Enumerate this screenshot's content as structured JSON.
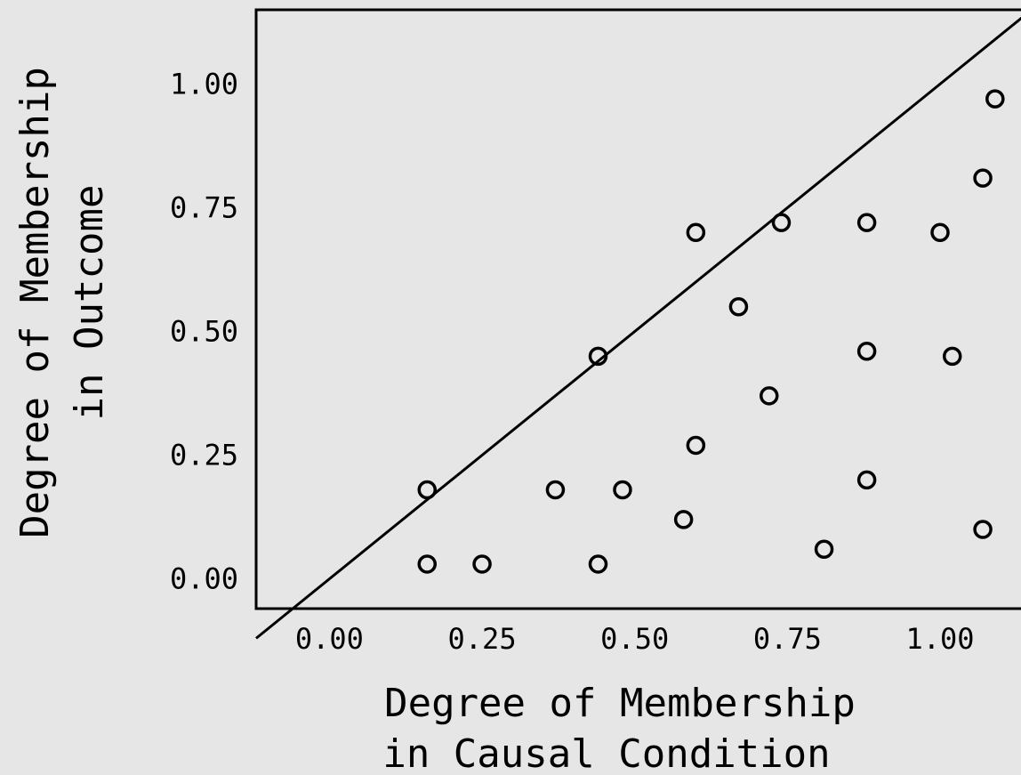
{
  "chart_data": {
    "type": "scatter",
    "title": "",
    "xlabel_lines": [
      "Degree of Membership",
      "in Causal Condition"
    ],
    "ylabel_lines": [
      "Degree of Membership",
      "in Outcome"
    ],
    "xlim": [
      -0.12,
      1.15
    ],
    "ylim": [
      -0.06,
      1.15
    ],
    "x_ticks": [
      0.0,
      0.25,
      0.5,
      0.75,
      1.0
    ],
    "x_tick_labels": [
      "0.00",
      "0.25",
      "0.50",
      "0.75",
      "1.00"
    ],
    "y_ticks": [
      0.0,
      0.25,
      0.5,
      0.75,
      1.0
    ],
    "y_tick_labels": [
      "0.00",
      "0.25",
      "0.50",
      "0.75",
      "1.00"
    ],
    "grid": false,
    "marker": "open-circle",
    "reference_line": "y = x",
    "points": [
      {
        "x": 0.16,
        "y": 0.18
      },
      {
        "x": 0.16,
        "y": 0.03
      },
      {
        "x": 0.25,
        "y": 0.03
      },
      {
        "x": 0.37,
        "y": 0.18
      },
      {
        "x": 0.44,
        "y": 0.03
      },
      {
        "x": 0.44,
        "y": 0.45
      },
      {
        "x": 0.48,
        "y": 0.18
      },
      {
        "x": 0.58,
        "y": 0.12
      },
      {
        "x": 0.6,
        "y": 0.27
      },
      {
        "x": 0.6,
        "y": 0.7
      },
      {
        "x": 0.67,
        "y": 0.55
      },
      {
        "x": 0.72,
        "y": 0.37
      },
      {
        "x": 0.74,
        "y": 0.72
      },
      {
        "x": 0.81,
        "y": 0.06
      },
      {
        "x": 0.88,
        "y": 0.72
      },
      {
        "x": 0.88,
        "y": 0.46
      },
      {
        "x": 0.88,
        "y": 0.2
      },
      {
        "x": 1.0,
        "y": 0.7
      },
      {
        "x": 1.02,
        "y": 0.45
      },
      {
        "x": 1.07,
        "y": 0.81
      },
      {
        "x": 1.07,
        "y": 0.1
      },
      {
        "x": 1.09,
        "y": 0.97
      }
    ]
  }
}
